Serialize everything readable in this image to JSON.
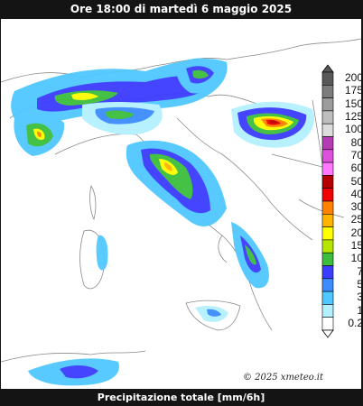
{
  "header": {
    "title": "Ore 18:00 di martedì 6 maggio 2025"
  },
  "footer": {
    "caption": "Precipitazione totale [mm/6h]"
  },
  "map": {
    "credit": "© 2025 xmeteo.it"
  },
  "legend": {
    "labels": [
      "200",
      "175",
      "150",
      "125",
      "100",
      "80",
      "70",
      "60",
      "50",
      "40",
      "30",
      "25",
      "20",
      "15",
      "10",
      "7",
      "5",
      "3",
      "1",
      "0.2"
    ],
    "colors": [
      "#585858",
      "#7c7c7c",
      "#9c9c9c",
      "#bebebe",
      "#dcdcdc",
      "#b43cb4",
      "#dc50dc",
      "#ff78ff",
      "#b40000",
      "#f00000",
      "#ff8200",
      "#ffb400",
      "#ffff00",
      "#b4e600",
      "#3cbe3c",
      "#3c3cff",
      "#3c8cff",
      "#50c8ff",
      "#b4f0ff",
      "#ffffff"
    ]
  }
}
